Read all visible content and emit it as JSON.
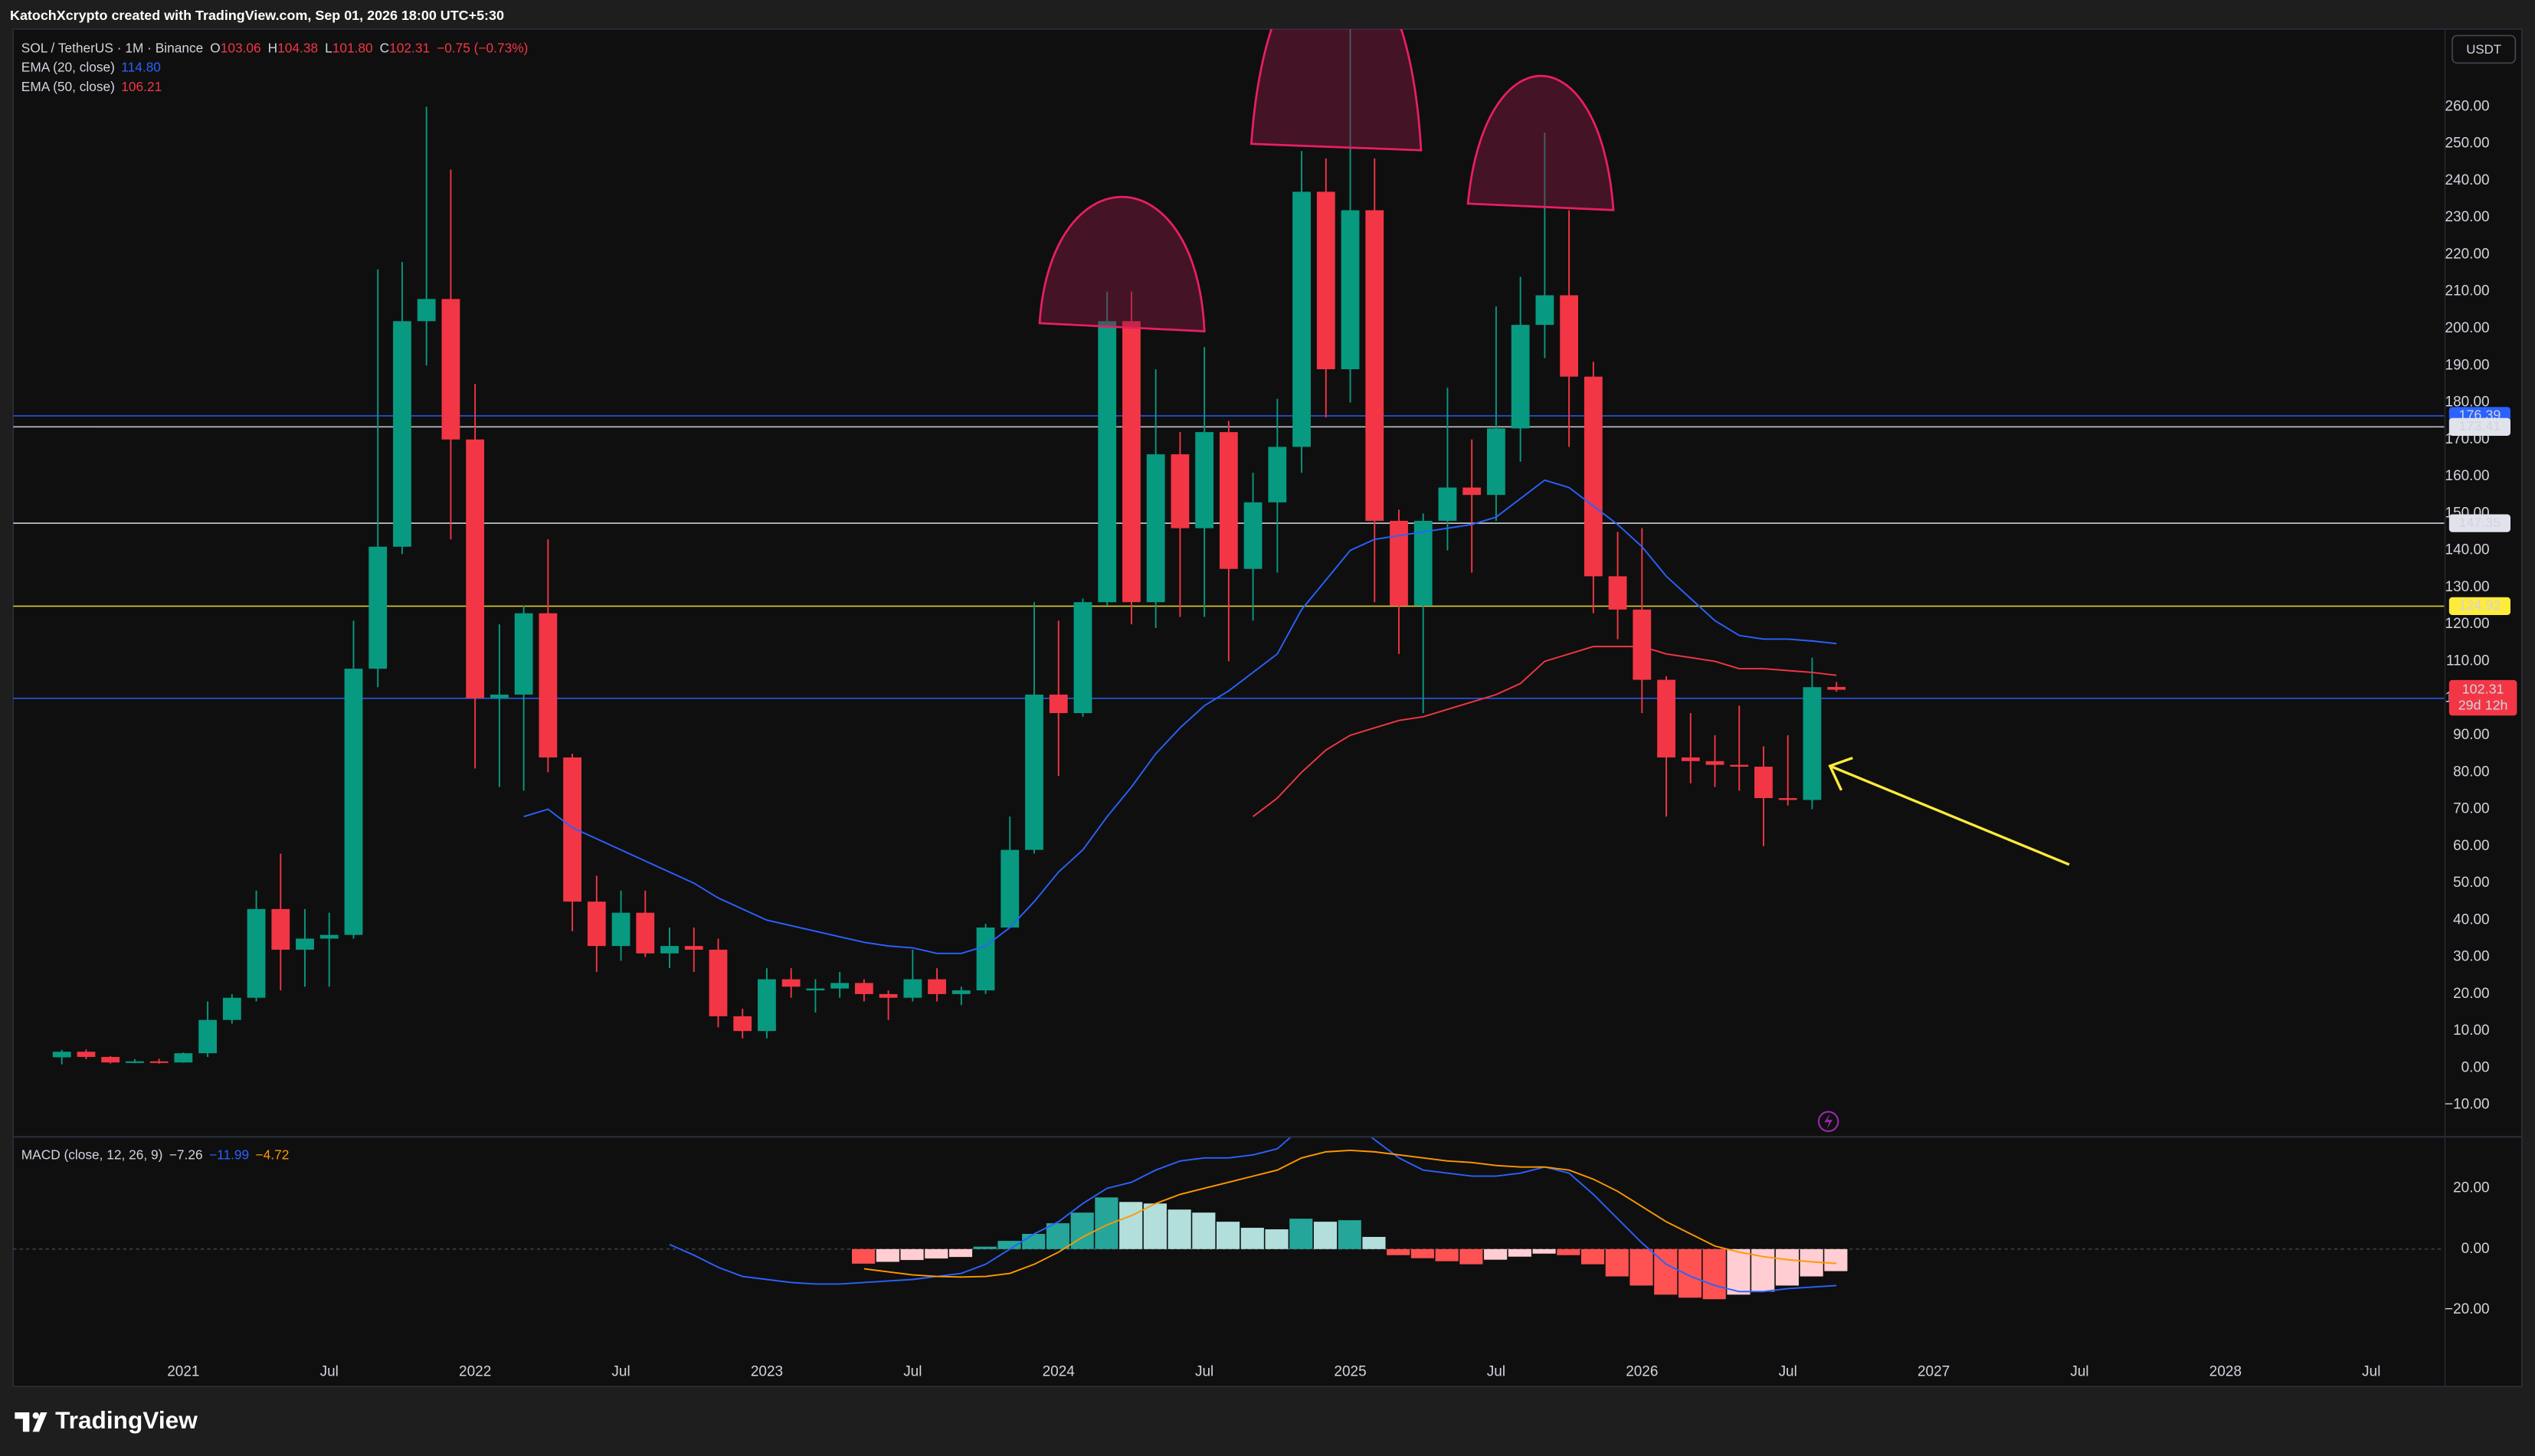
{
  "header": {
    "title": "KatochXcrypto created with TradingView.com, Sep 01, 2026 18:00 UTC+5:30",
    "currency_button": "USDT"
  },
  "footer": {
    "logo": "TradingView"
  },
  "chart_data": [
    {
      "type": "candlestick",
      "legend": {
        "symbol": "SOL / TetherUS · 1M · Binance",
        "ohlc": [
          "O",
          "103.06",
          "H",
          "104.38",
          "L",
          "101.80",
          "C",
          "102.31"
        ],
        "change": "−0.75 (−0.73%)"
      },
      "x": [
        "2020-08",
        "2020-09",
        "2020-10",
        "2020-11",
        "2020-12",
        "2021-01",
        "2021-02",
        "2021-03",
        "2021-04",
        "2021-05",
        "2021-06",
        "2021-07",
        "2021-08",
        "2021-09",
        "2021-10",
        "2021-11",
        "2021-12",
        "2022-01",
        "2022-02",
        "2022-03",
        "2022-04",
        "2022-05",
        "2022-06",
        "2022-07",
        "2022-08",
        "2022-09",
        "2022-10",
        "2022-11",
        "2022-12",
        "2023-01",
        "2023-02",
        "2023-03",
        "2023-04",
        "2023-05",
        "2023-06",
        "2023-07",
        "2023-08",
        "2023-09",
        "2023-10",
        "2023-11",
        "2023-12",
        "2024-01",
        "2024-02",
        "2024-03",
        "2024-04",
        "2024-05",
        "2024-06",
        "2024-07",
        "2024-08",
        "2024-09",
        "2024-10",
        "2024-11",
        "2024-12",
        "2025-01",
        "2025-02",
        "2025-03",
        "2025-04",
        "2025-05",
        "2025-06",
        "2025-07",
        "2025-08",
        "2025-09",
        "2025-10",
        "2025-11",
        "2025-12",
        "2026-01",
        "2026-02",
        "2026-03",
        "2026-04",
        "2026-05",
        "2026-06",
        "2026-07",
        "2026-08",
        "2026-09"
      ],
      "open": [
        2.9,
        4.4,
        3.0,
        1.5,
        1.8,
        1.5,
        4.0,
        13,
        19,
        43,
        32,
        35,
        36,
        108,
        141,
        202,
        208,
        170,
        100,
        101,
        123,
        84,
        45,
        33,
        42,
        31,
        33,
        32,
        14,
        10,
        24,
        21,
        21.5,
        23,
        20,
        19,
        24,
        20,
        21,
        38,
        59,
        101,
        96,
        126,
        202,
        126,
        166,
        146,
        172,
        135,
        153,
        168,
        237,
        189,
        232,
        148,
        125,
        148,
        157,
        155,
        173,
        201,
        209,
        187,
        133,
        124,
        105,
        84,
        83,
        82,
        81.5,
        73,
        72.5,
        103.06
      ],
      "high": [
        4.9,
        5.0,
        3.2,
        2.4,
        2.5,
        4.2,
        18,
        20,
        48,
        58,
        43,
        42,
        121,
        216,
        218,
        260,
        243,
        185,
        120,
        125,
        143,
        85,
        52,
        48,
        48,
        38,
        38,
        35,
        16,
        27,
        27,
        24,
        26,
        24,
        21,
        32,
        27,
        22,
        39,
        68,
        126,
        121,
        127,
        210,
        210,
        189,
        172,
        195,
        175,
        161,
        181,
        248,
        246,
        295,
        246,
        151,
        150,
        184,
        170,
        206,
        214,
        253,
        232,
        191,
        145,
        146,
        106,
        96,
        90,
        98,
        87,
        90,
        111,
        104.38
      ],
      "low": [
        1.0,
        2.4,
        1.2,
        1.3,
        1.2,
        1.4,
        3.0,
        12,
        18,
        21,
        22,
        22,
        35,
        103,
        139,
        190,
        143,
        81,
        76,
        75,
        80,
        37,
        26,
        29,
        30,
        27,
        26,
        11,
        8,
        8,
        19,
        15,
        19,
        18,
        13,
        18,
        18,
        17,
        20,
        38,
        58,
        79,
        95,
        125,
        120,
        119,
        122,
        122,
        110,
        121,
        134,
        161,
        176,
        180,
        126,
        112,
        96,
        140,
        134,
        148,
        164,
        192,
        168,
        123,
        116,
        96,
        68,
        77,
        76,
        75,
        60,
        71,
        70,
        101.8
      ],
      "close": [
        4.4,
        3.0,
        1.5,
        1.8,
        1.5,
        4.0,
        13,
        19,
        43,
        32,
        35,
        36,
        108,
        141,
        202,
        208,
        170,
        100,
        101,
        123,
        84,
        45,
        33,
        42,
        31,
        33,
        32,
        14,
        10,
        24,
        22,
        21.5,
        23,
        20,
        19,
        24,
        20,
        21,
        38,
        59,
        101,
        96,
        126,
        202,
        126,
        166,
        146,
        172,
        135,
        153,
        168,
        237,
        189,
        232,
        148,
        125,
        148,
        157,
        155,
        173,
        201,
        209,
        187,
        133,
        124,
        105,
        84,
        83,
        82,
        81.5,
        73,
        72.5,
        103,
        102.31
      ],
      "up_color": "#089981",
      "down_color": "#f23645",
      "countdown": "29d 12h",
      "series": [
        {
          "name": "EMA (20, close)",
          "legend_value": "114.80",
          "color": "#2962ff",
          "values": [
            null,
            null,
            null,
            null,
            null,
            null,
            null,
            null,
            null,
            null,
            null,
            null,
            null,
            null,
            null,
            null,
            null,
            null,
            null,
            68,
            70,
            65,
            62,
            59,
            56,
            53,
            50,
            46,
            43,
            40,
            38.5,
            37,
            35.5,
            34,
            33,
            32.5,
            31,
            31,
            33,
            38,
            45,
            53,
            59,
            68,
            76,
            85,
            92,
            98,
            102,
            107,
            112,
            124,
            132,
            140,
            143,
            144,
            145,
            146,
            147,
            149,
            154,
            159,
            157,
            152,
            147,
            141,
            133,
            127,
            121,
            117,
            116,
            116,
            115.5,
            114.8
          ]
        },
        {
          "name": "EMA (50, close)",
          "legend_value": "106.21",
          "color": "#f23645",
          "values": [
            null,
            null,
            null,
            null,
            null,
            null,
            null,
            null,
            null,
            null,
            null,
            null,
            null,
            null,
            null,
            null,
            null,
            null,
            null,
            null,
            null,
            null,
            null,
            null,
            null,
            null,
            null,
            null,
            null,
            null,
            null,
            null,
            null,
            null,
            null,
            null,
            null,
            null,
            null,
            null,
            null,
            null,
            null,
            null,
            null,
            null,
            null,
            null,
            null,
            68,
            73,
            80,
            86,
            90,
            92,
            94,
            95,
            97,
            99,
            101,
            104,
            110,
            112,
            114,
            114,
            114,
            112,
            111,
            110,
            108,
            108,
            107.5,
            107,
            106.21
          ]
        }
      ],
      "levels": [
        {
          "value": 176.39,
          "color": "#2962ff",
          "text_color": "#ffffff"
        },
        {
          "value": 173.41,
          "color": "#e0e3eb",
          "text_color": "#131722"
        },
        {
          "value": 147.35,
          "color": "#e0e3eb",
          "text_color": "#131722"
        },
        {
          "value": 124.92,
          "color": "#ffeb3b",
          "text_color": "#131722"
        },
        {
          "value": 99.99,
          "color": "#2962ff",
          "text_color": "#ffffff"
        }
      ],
      "xlim": [
        "2020-06",
        "2028-10"
      ],
      "ylim": [
        -18.4,
        281
      ],
      "yticks": [
        {
          "value": -10,
          "label": "−10.00"
        },
        {
          "value": 0,
          "label": "0.00"
        },
        {
          "value": 10,
          "label": "10.00"
        },
        {
          "value": 20,
          "label": "20.00"
        },
        {
          "value": 30,
          "label": "30.00"
        },
        {
          "value": 40,
          "label": "40.00"
        },
        {
          "value": 50,
          "label": "50.00"
        },
        {
          "value": 60,
          "label": "60.00"
        },
        {
          "value": 70,
          "label": "70.00"
        },
        {
          "value": 80,
          "label": "80.00"
        },
        {
          "value": 90,
          "label": "90.00"
        },
        {
          "value": 100,
          "label": "100.00"
        },
        {
          "value": 110,
          "label": "110.00"
        },
        {
          "value": 120,
          "label": "120.00"
        },
        {
          "value": 130,
          "label": "130.00"
        },
        {
          "value": 140,
          "label": "140.00"
        },
        {
          "value": 150,
          "label": "150.00"
        },
        {
          "value": 160,
          "label": "160.00"
        },
        {
          "value": 170,
          "label": "170.00"
        },
        {
          "value": 180,
          "label": "180.00"
        },
        {
          "value": 190,
          "label": "190.00"
        },
        {
          "value": 200,
          "label": "200.00"
        },
        {
          "value": 210,
          "label": "210.00"
        },
        {
          "value": 220,
          "label": "220.00"
        },
        {
          "value": 230,
          "label": "230.00"
        },
        {
          "value": 240,
          "label": "240.00"
        },
        {
          "value": 250,
          "label": "250.00"
        },
        {
          "value": 260,
          "label": "260.00"
        }
      ],
      "grid": false
    },
    {
      "type": "macd",
      "legend": {
        "title": "MACD (close, 12, 26, 9)",
        "values": [
          "−7.26",
          "−11.99",
          "−4.72"
        ],
        "colors": [
          "#d1d4dc",
          "#2962ff",
          "#ff9800"
        ]
      },
      "histogram": {
        "colors": [
          "#26a69a",
          "#b2dfdb",
          "#ff5252",
          "#ffcdd2"
        ],
        "values": [
          null,
          null,
          null,
          null,
          null,
          null,
          null,
          null,
          null,
          null,
          null,
          null,
          null,
          null,
          null,
          null,
          null,
          null,
          null,
          null,
          null,
          null,
          null,
          null,
          null,
          null,
          null,
          null,
          null,
          null,
          null,
          null,
          null,
          -4.8,
          -4.2,
          -3.6,
          -3.1,
          -2.6,
          0.8,
          2.7,
          5,
          8.5,
          12,
          17,
          15.5,
          15,
          13,
          12,
          9,
          7,
          6.5,
          10,
          9,
          9.5,
          4,
          -2,
          -3,
          -4,
          -5,
          -3.5,
          -2.5,
          -1.5,
          -2,
          -5,
          -9,
          -12,
          -15,
          -16,
          -16.5,
          -15,
          -14,
          -12,
          -9,
          -7.26
        ]
      },
      "series": [
        {
          "color": "#2962ff",
          "values": [
            null,
            null,
            null,
            null,
            null,
            null,
            null,
            null,
            null,
            null,
            null,
            null,
            null,
            null,
            null,
            null,
            null,
            null,
            null,
            null,
            null,
            null,
            null,
            null,
            null,
            1.5,
            -2,
            -6,
            -9,
            -10,
            -11,
            -11.5,
            -11.5,
            -11,
            -10.5,
            -10,
            -9,
            -8,
            -5,
            0,
            5,
            9,
            15,
            20,
            22,
            26,
            29,
            30,
            30,
            31,
            33,
            40,
            42,
            42,
            36,
            30,
            26,
            25,
            24,
            24,
            25,
            27,
            25,
            18,
            10,
            2,
            -5,
            -9,
            -12,
            -14,
            -14,
            -13,
            -12.5,
            -11.99
          ]
        },
        {
          "color": "#ff9800",
          "values": [
            null,
            null,
            null,
            null,
            null,
            null,
            null,
            null,
            null,
            null,
            null,
            null,
            null,
            null,
            null,
            null,
            null,
            null,
            null,
            null,
            null,
            null,
            null,
            null,
            null,
            null,
            null,
            null,
            null,
            null,
            null,
            null,
            null,
            -6.5,
            -7.5,
            -8.5,
            -9,
            -9.2,
            -9,
            -8,
            -5,
            -1,
            4,
            8,
            11,
            15,
            18,
            20,
            22,
            24,
            26,
            30,
            32,
            32.5,
            32,
            31,
            30,
            29,
            28.5,
            27.5,
            27,
            27,
            26,
            23,
            19,
            14,
            9,
            5,
            1,
            -1,
            -2.5,
            -3.5,
            -4.2,
            -4.72
          ]
        }
      ],
      "xlim": [
        "2020-06",
        "2028-10"
      ],
      "xticks": [
        {
          "value": "2021-01",
          "label": "2021"
        },
        {
          "value": "2021-07",
          "label": "Jul"
        },
        {
          "value": "2022-01",
          "label": "2022"
        },
        {
          "value": "2022-07",
          "label": "Jul"
        },
        {
          "value": "2023-01",
          "label": "2023"
        },
        {
          "value": "2023-07",
          "label": "Jul"
        },
        {
          "value": "2024-01",
          "label": "2024"
        },
        {
          "value": "2024-07",
          "label": "Jul"
        },
        {
          "value": "2025-01",
          "label": "2025"
        },
        {
          "value": "2025-07",
          "label": "Jul"
        },
        {
          "value": "2026-01",
          "label": "2026"
        },
        {
          "value": "2026-07",
          "label": "Jul"
        },
        {
          "value": "2027-01",
          "label": "2027"
        },
        {
          "value": "2027-07",
          "label": "Jul"
        },
        {
          "value": "2028-01",
          "label": "2028"
        },
        {
          "value": "2028-07",
          "label": "Jul"
        }
      ],
      "ylim": [
        -44.7,
        37.2
      ],
      "yticks": [
        {
          "value": 20,
          "label": "20.00"
        },
        {
          "value": 0,
          "label": "0.00"
        },
        {
          "value": -20,
          "label": "−20.00"
        }
      ],
      "grid": false
    }
  ]
}
